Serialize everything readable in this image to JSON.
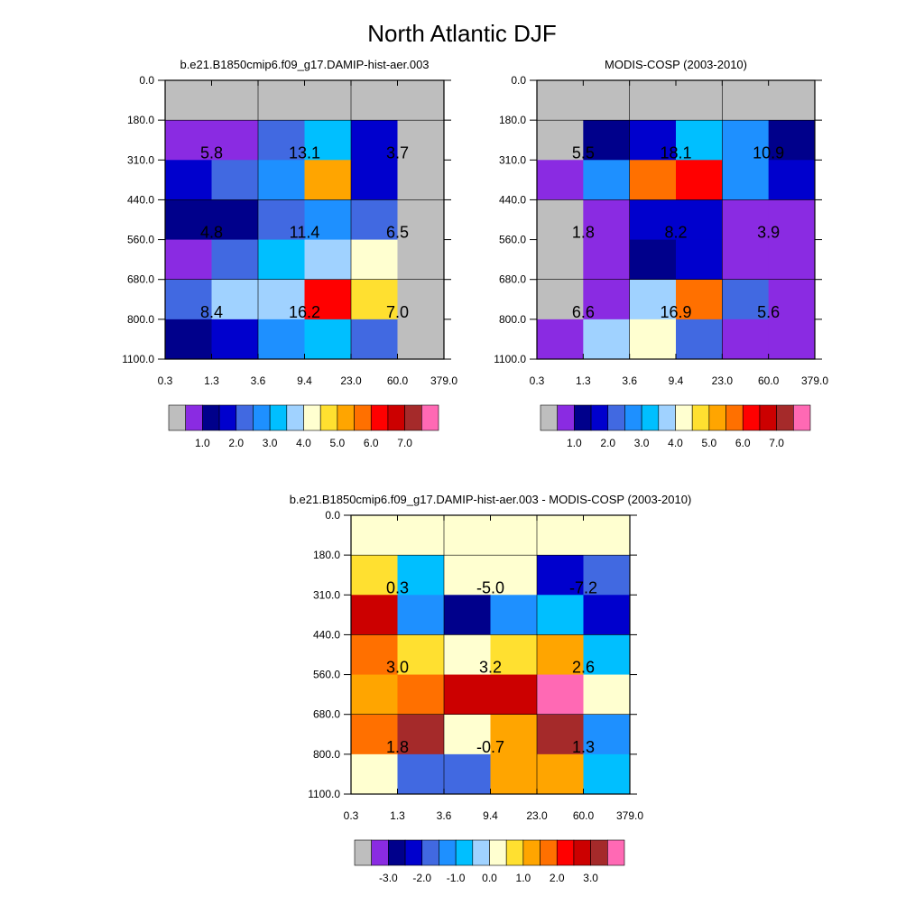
{
  "figure": {
    "title": "North Atlantic DJF"
  },
  "chart_data": [
    {
      "type": "heatmap",
      "title": "b.e21.B1850cmip6.f09_g17.DAMIP-hist-aer.003",
      "x_ticks": [
        "0.3",
        "1.3",
        "3.6",
        "9.4",
        "23.0",
        "60.0",
        "379.0"
      ],
      "y_ticks": [
        "0.0",
        "180.0",
        "310.0",
        "440.0",
        "560.0",
        "680.0",
        "800.0",
        "1100.0"
      ],
      "cells": [
        [
          -1,
          -1,
          -1,
          -1,
          -1,
          -1
        ],
        [
          1.0,
          1.0,
          2.5,
          3.5,
          2.0,
          -1
        ],
        [
          2.0,
          2.5,
          3.0,
          5.5,
          2.0,
          -1
        ],
        [
          1.5,
          1.5,
          2.5,
          3.0,
          2.5,
          -1
        ],
        [
          1.0,
          2.5,
          3.5,
          4.0,
          4.5,
          -1
        ],
        [
          2.5,
          4.0,
          4.0,
          6.5,
          5.0,
          -1
        ],
        [
          1.5,
          2.0,
          3.0,
          3.5,
          2.5,
          -1
        ]
      ],
      "group_labels": [
        {
          "row": 1,
          "col": 1,
          "text": "5.8"
        },
        {
          "row": 1,
          "col": 3,
          "text": "13.1"
        },
        {
          "row": 1,
          "col": 5,
          "text": "3.7"
        },
        {
          "row": 3,
          "col": 1,
          "text": "4.8"
        },
        {
          "row": 3,
          "col": 3,
          "text": "11.4"
        },
        {
          "row": 3,
          "col": 5,
          "text": "6.5"
        },
        {
          "row": 5,
          "col": 1,
          "text": "8.4"
        },
        {
          "row": 5,
          "col": 3,
          "text": "16.2"
        },
        {
          "row": 5,
          "col": 5,
          "text": "7.0"
        }
      ],
      "colorbar_labels": [
        "1.0",
        "2.0",
        "3.0",
        "4.0",
        "5.0",
        "6.0",
        "7.0"
      ]
    },
    {
      "type": "heatmap",
      "title": "MODIS-COSP (2003-2010)",
      "x_ticks": [
        "0.3",
        "1.3",
        "3.6",
        "9.4",
        "23.0",
        "60.0",
        "379.0"
      ],
      "y_ticks": [
        "0.0",
        "180.0",
        "310.0",
        "440.0",
        "560.0",
        "680.0",
        "800.0",
        "1100.0"
      ],
      "cells": [
        [
          -1,
          -1,
          -1,
          -1,
          -1,
          -1
        ],
        [
          -1,
          1.5,
          2.0,
          3.5,
          3.0,
          1.5
        ],
        [
          1.0,
          3.0,
          6.0,
          6.5,
          3.0,
          2.0
        ],
        [
          -1,
          1.0,
          2.0,
          2.0,
          1.0,
          1.0
        ],
        [
          -1,
          1.0,
          1.5,
          2.0,
          1.0,
          1.0
        ],
        [
          -1,
          1.0,
          4.0,
          6.0,
          2.5,
          1.0
        ],
        [
          1.0,
          4.0,
          4.5,
          2.5,
          1.0,
          1.0
        ]
      ],
      "group_labels": [
        {
          "row": 1,
          "col": 1,
          "text": "5.5"
        },
        {
          "row": 1,
          "col": 3,
          "text": "18.1"
        },
        {
          "row": 1,
          "col": 5,
          "text": "10.9"
        },
        {
          "row": 3,
          "col": 1,
          "text": "1.8"
        },
        {
          "row": 3,
          "col": 3,
          "text": "8.2"
        },
        {
          "row": 3,
          "col": 5,
          "text": "3.9"
        },
        {
          "row": 5,
          "col": 1,
          "text": "6.6"
        },
        {
          "row": 5,
          "col": 3,
          "text": "16.9"
        },
        {
          "row": 5,
          "col": 5,
          "text": "5.6"
        }
      ],
      "colorbar_labels": [
        "1.0",
        "2.0",
        "3.0",
        "4.0",
        "5.0",
        "6.0",
        "7.0"
      ]
    },
    {
      "type": "heatmap",
      "title": "b.e21.B1850cmip6.f09_g17.DAMIP-hist-aer.003 - MODIS-COSP (2003-2010)",
      "x_ticks": [
        "0.3",
        "1.3",
        "3.6",
        "9.4",
        "23.0",
        "60.0",
        "379.0"
      ],
      "y_ticks": [
        "0.0",
        "180.0",
        "310.0",
        "440.0",
        "560.0",
        "680.0",
        "800.0",
        "1100.0"
      ],
      "cells": [
        [
          -0.25,
          -0.25,
          -0.25,
          -0.25,
          -0.25,
          -0.25
        ],
        [
          0.25,
          -1.25,
          -0.25,
          -0.25,
          -2.75,
          -2.25
        ],
        [
          2.25,
          -1.75,
          -3.25,
          -1.75,
          -1.25,
          -2.75
        ],
        [
          1.25,
          0.25,
          -0.25,
          0.25,
          0.75,
          -1.25
        ],
        [
          0.75,
          1.25,
          2.25,
          2.25,
          3.25,
          -0.25
        ],
        [
          1.25,
          2.75,
          -0.25,
          0.75,
          2.75,
          -1.75
        ],
        [
          -0.25,
          -2.25,
          -2.25,
          0.75,
          0.75,
          -1.25
        ]
      ],
      "group_labels": [
        {
          "row": 1,
          "col": 1,
          "text": "0.3"
        },
        {
          "row": 1,
          "col": 3,
          "text": "-5.0"
        },
        {
          "row": 1,
          "col": 5,
          "text": "-7.2"
        },
        {
          "row": 3,
          "col": 1,
          "text": "3.0"
        },
        {
          "row": 3,
          "col": 3,
          "text": "3.2"
        },
        {
          "row": 3,
          "col": 5,
          "text": "2.6"
        },
        {
          "row": 5,
          "col": 1,
          "text": "1.8"
        },
        {
          "row": 5,
          "col": 3,
          "text": "-0.7"
        },
        {
          "row": 5,
          "col": 5,
          "text": "1.3"
        }
      ],
      "colorbar_labels": [
        "-3.0",
        "-2.0",
        "-1.0",
        "0.0",
        "1.0",
        "2.0",
        "3.0"
      ]
    }
  ],
  "palette": [
    "#bebebe",
    "#8a2be2",
    "#00008b",
    "#0000cd",
    "#4169e1",
    "#1e90ff",
    "#00bfff",
    "#a0d2ff",
    "#ffffd0",
    "#ffe030",
    "#ffa500",
    "#ff7000",
    "#ff0000",
    "#cc0000",
    "#a52a2a",
    "#ff69b4"
  ]
}
